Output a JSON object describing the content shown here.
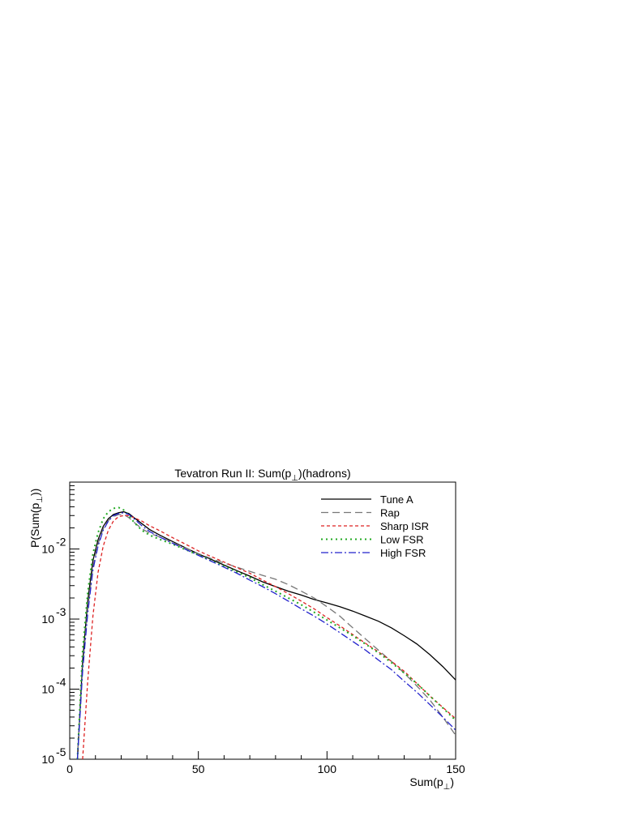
{
  "chart_data": {
    "type": "line",
    "title": "Tevatron Run II: Sum(p",
    "title_sub": "⊥",
    "title_suffix": ")(hadrons)",
    "xlabel": "Sum(p",
    "xlabel_sub": "⊥",
    "xlabel_suffix": ")",
    "ylabel": "P(Sum(p",
    "ylabel_sub": "⊥",
    "ylabel_suffix": "))",
    "xlim": [
      0,
      150
    ],
    "ylim": [
      1e-05,
      0.09
    ],
    "yscale": "log",
    "grid": false,
    "legend_placement": "top-right",
    "x_ticks": [
      {
        "value": 0,
        "label": "0"
      },
      {
        "value": 50,
        "label": "50"
      },
      {
        "value": 100,
        "label": "100"
      },
      {
        "value": 150,
        "label": "150"
      }
    ],
    "y_ticks": [
      {
        "value": 1e-05,
        "base": "10",
        "exp": "-5"
      },
      {
        "value": 0.0001,
        "base": "10",
        "exp": "-4"
      },
      {
        "value": 0.001,
        "base": "10",
        "exp": "-3"
      },
      {
        "value": 0.01,
        "base": "10",
        "exp": "-2"
      }
    ],
    "series": [
      {
        "name": "Tune A",
        "color": "#000000",
        "dash": "",
        "x": [
          3,
          5,
          7,
          9,
          11,
          13,
          15,
          17,
          19,
          21,
          23,
          25,
          28,
          31,
          35,
          40,
          45,
          50,
          55,
          60,
          65,
          70,
          75,
          80,
          85,
          90,
          95,
          100,
          105,
          110,
          115,
          120,
          125,
          130,
          135,
          140,
          145,
          150
        ],
        "y": [
          1e-05,
          0.00025,
          0.0018,
          0.0068,
          0.0135,
          0.021,
          0.027,
          0.031,
          0.033,
          0.034,
          0.032,
          0.028,
          0.023,
          0.019,
          0.0158,
          0.0128,
          0.0104,
          0.0085,
          0.0071,
          0.0059,
          0.0049,
          0.0041,
          0.0034,
          0.0029,
          0.0025,
          0.0022,
          0.0019,
          0.0017,
          0.0015,
          0.0013,
          0.0011,
          0.00093,
          0.00075,
          0.00058,
          0.00044,
          0.00031,
          0.00021,
          0.000135
        ]
      },
      {
        "name": "Rap",
        "color": "#777777",
        "dash": "9,5",
        "x": [
          3,
          5,
          7,
          9,
          11,
          13,
          15,
          17,
          19,
          21,
          23,
          25,
          28,
          31,
          35,
          40,
          45,
          50,
          55,
          60,
          65,
          70,
          75,
          80,
          85,
          90,
          95,
          100,
          105,
          110,
          115,
          120,
          125,
          130,
          135,
          140,
          145,
          150
        ],
        "y": [
          1e-05,
          0.0002,
          0.0014,
          0.0055,
          0.0118,
          0.0195,
          0.0255,
          0.029,
          0.031,
          0.031,
          0.028,
          0.024,
          0.0195,
          0.0168,
          0.0148,
          0.0124,
          0.0103,
          0.0086,
          0.0073,
          0.0063,
          0.0055,
          0.0048,
          0.0042,
          0.0037,
          0.0031,
          0.0025,
          0.002,
          0.0015,
          0.0011,
          0.00075,
          0.00052,
          0.00036,
          0.00025,
          0.00017,
          0.00011,
          7e-05,
          4e-05,
          2.2e-05
        ]
      },
      {
        "name": "Sharp ISR",
        "color": "#dd2222",
        "dash": "4,3",
        "x": [
          5,
          7,
          9,
          11,
          13,
          15,
          17,
          19,
          21,
          23,
          25,
          28,
          31,
          35,
          40,
          45,
          50,
          55,
          60,
          65,
          70,
          75,
          80,
          85,
          90,
          95,
          100,
          105,
          110,
          115,
          120,
          125,
          130,
          135,
          140,
          145,
          150
        ],
        "y": [
          1e-05,
          0.00013,
          0.0011,
          0.0046,
          0.011,
          0.0185,
          0.025,
          0.029,
          0.03,
          0.03,
          0.028,
          0.025,
          0.0215,
          0.0182,
          0.0145,
          0.0117,
          0.0094,
          0.0078,
          0.0065,
          0.0054,
          0.0045,
          0.0036,
          0.0029,
          0.0023,
          0.0018,
          0.0014,
          0.00105,
          0.0008,
          0.0006,
          0.00045,
          0.00034,
          0.00025,
          0.00018,
          0.00012,
          8e-05,
          5.5e-05,
          3.8e-05
        ]
      },
      {
        "name": "Low FSR",
        "color": "#22aa22",
        "dash": "2,4",
        "x": [
          3,
          5,
          7,
          9,
          11,
          13,
          15,
          17,
          19,
          21,
          23,
          25,
          28,
          31,
          35,
          40,
          45,
          50,
          55,
          60,
          65,
          70,
          75,
          80,
          85,
          90,
          95,
          100,
          105,
          110,
          115,
          120,
          125,
          130,
          135,
          140,
          145,
          150
        ],
        "y": [
          1e-05,
          0.00035,
          0.0024,
          0.0085,
          0.017,
          0.027,
          0.034,
          0.038,
          0.039,
          0.036,
          0.03,
          0.024,
          0.0185,
          0.0158,
          0.0137,
          0.0117,
          0.0098,
          0.0082,
          0.0068,
          0.0057,
          0.0047,
          0.0039,
          0.0031,
          0.0025,
          0.002,
          0.0016,
          0.00125,
          0.00097,
          0.00075,
          0.00058,
          0.00044,
          0.00033,
          0.00024,
          0.00017,
          0.00012,
          8e-05,
          5.4e-05,
          3.6e-05
        ]
      },
      {
        "name": "High FSR",
        "color": "#2222cc",
        "dash": "9,3,2,3",
        "x": [
          3,
          5,
          7,
          9,
          11,
          13,
          15,
          17,
          19,
          21,
          23,
          25,
          28,
          31,
          35,
          40,
          45,
          50,
          55,
          60,
          65,
          70,
          75,
          80,
          85,
          90,
          95,
          100,
          105,
          110,
          115,
          120,
          125,
          130,
          135,
          140,
          145,
          150
        ],
        "y": [
          1e-05,
          0.00018,
          0.0012,
          0.005,
          0.011,
          0.0185,
          0.025,
          0.03,
          0.032,
          0.033,
          0.031,
          0.027,
          0.0215,
          0.0178,
          0.0148,
          0.0121,
          0.0099,
          0.0081,
          0.0067,
          0.0055,
          0.0045,
          0.0036,
          0.0029,
          0.0023,
          0.0018,
          0.0014,
          0.0011,
          0.00085,
          0.00064,
          0.00048,
          0.00036,
          0.00026,
          0.00019,
          0.00013,
          9e-05,
          6e-05,
          4e-05,
          2.6e-05
        ]
      }
    ]
  }
}
